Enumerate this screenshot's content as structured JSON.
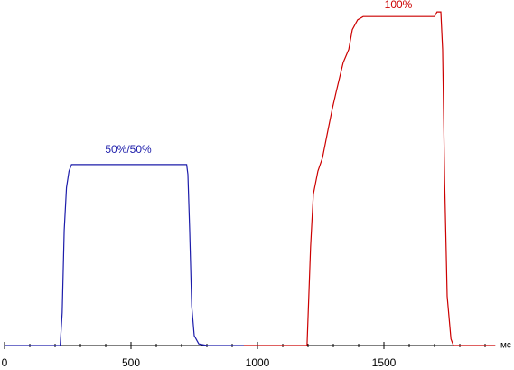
{
  "chart_data": {
    "type": "line",
    "annotations": [
      "50%/50%",
      "100%"
    ],
    "xlabel": "мс",
    "xlim": [
      0,
      1940
    ],
    "ylim": [
      0,
      105
    ],
    "xticks": [
      0,
      500,
      1000,
      1500
    ],
    "xminorticks": [
      100,
      200,
      300,
      400,
      600,
      700,
      800,
      900,
      1100,
      1200,
      1300,
      1400,
      1600,
      1700,
      1800,
      1900
    ],
    "series": [
      {
        "color": "#1c1caa",
        "x": [
          0,
          220,
          228,
          236,
          245,
          255,
          265,
          290,
          720,
          725,
          732,
          740,
          750,
          768,
          800,
          946
        ],
        "values": [
          0,
          0,
          10,
          35,
          48,
          53,
          55,
          55,
          55,
          52,
          35,
          12,
          3,
          0.5,
          0,
          0
        ]
      },
      {
        "color": "#cc0000",
        "x": [
          946,
          1196,
          1203,
          1210,
          1221,
          1239,
          1257,
          1275,
          1296,
          1311,
          1339,
          1361,
          1375,
          1396,
          1418,
          1700,
          1710,
          1725,
          1732,
          1740,
          1750,
          1765,
          1775,
          1940
        ],
        "values": [
          0,
          0,
          15,
          30,
          46,
          53,
          57,
          64,
          72,
          77,
          86,
          90,
          96,
          99,
          100,
          100,
          101.4,
          101.4,
          90,
          50,
          15,
          2,
          0,
          0
        ]
      }
    ]
  }
}
